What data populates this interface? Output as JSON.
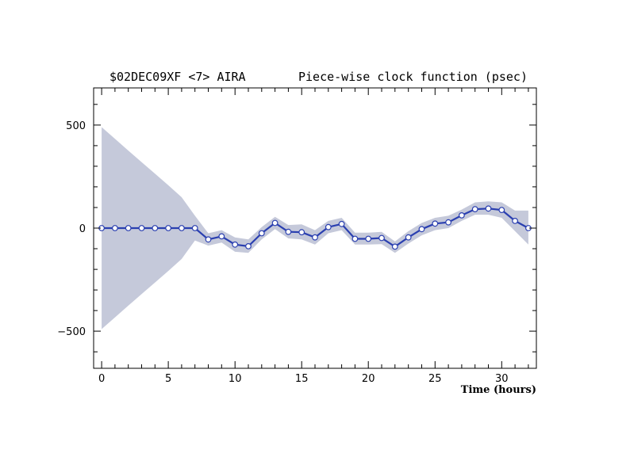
{
  "chart_data": {
    "type": "line",
    "title_left": "$02DEC09XF <7>  AIRA",
    "title_right": "Piece-wise clock function (psec)",
    "xlabel": "Time (hours)",
    "ylabel": "",
    "xlim": [
      -0.6,
      32.6
    ],
    "ylim": [
      -680,
      680
    ],
    "x_ticks": [
      0,
      5,
      10,
      15,
      20,
      25,
      30
    ],
    "y_ticks": [
      -500,
      0,
      500
    ],
    "y_tick_labels": [
      "−500",
      "0",
      "500"
    ],
    "grid": false,
    "colors": {
      "line": "#2a3fb0",
      "band": "#c5c9da",
      "marker_fill": "#ffffff",
      "marker_stroke": "#2a3fb0"
    },
    "series": [
      {
        "x": [
          0,
          1,
          2,
          3,
          4,
          5,
          6,
          7,
          8,
          9,
          10,
          11,
          12,
          13,
          14,
          15,
          16,
          17,
          18,
          19,
          20,
          21,
          22,
          23,
          24,
          25,
          26,
          27,
          28,
          29,
          30,
          31,
          32
        ],
        "y": [
          0,
          0,
          0,
          0,
          0,
          0,
          0,
          0,
          -55,
          -40,
          -80,
          -88,
          -25,
          25,
          -18,
          -20,
          -45,
          5,
          20,
          -52,
          -52,
          -48,
          -90,
          -45,
          -5,
          22,
          28,
          62,
          92,
          95,
          88,
          35,
          0
        ],
        "upper": [
          490,
          433,
          376,
          320,
          264,
          208,
          150,
          60,
          -25,
          -10,
          -45,
          -55,
          5,
          55,
          15,
          18,
          -10,
          35,
          50,
          -22,
          -22,
          -18,
          -65,
          -15,
          25,
          50,
          60,
          90,
          125,
          130,
          125,
          85,
          85
        ],
        "lower": [
          -490,
          -433,
          -376,
          -320,
          -264,
          -208,
          -150,
          -60,
          -85,
          -70,
          -115,
          -120,
          -55,
          -5,
          -50,
          -55,
          -80,
          -25,
          -10,
          -80,
          -80,
          -78,
          -120,
          -75,
          -35,
          -10,
          0,
          35,
          65,
          65,
          50,
          -15,
          -80
        ]
      }
    ]
  }
}
